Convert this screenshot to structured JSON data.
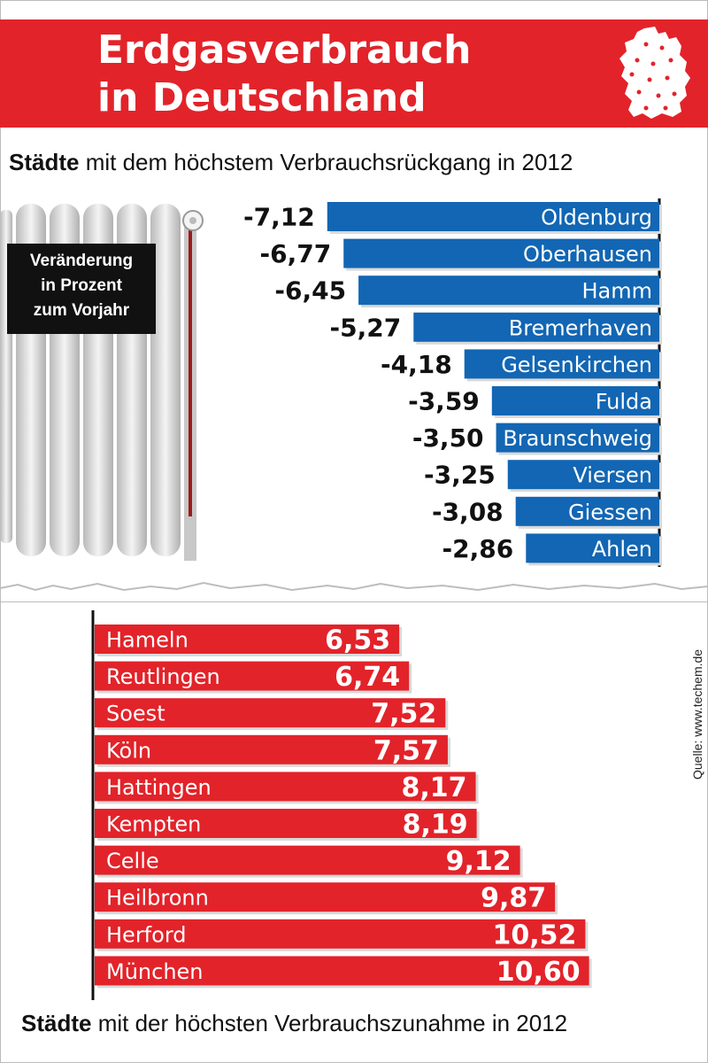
{
  "header": {
    "title_line1": "Erdgasverbrauch",
    "title_line2": "in Deutschland",
    "icon": "germany-map-icon"
  },
  "top_section": {
    "subtitle_bold": "Städte",
    "subtitle_rest": " mit dem höchstem Verbrauchsrückgang in 2012"
  },
  "legend": {
    "line1": "Veränderung",
    "line2": "in Prozent",
    "line3": "zum Vorjahr",
    "icon": "radiator-icon"
  },
  "bottom_section": {
    "subtitle_bold": "Städte",
    "subtitle_rest": " mit der höchsten Verbrauchszunahme in 2012"
  },
  "source": "Quelle: www.techem.de",
  "colors": {
    "header_red": "#e2232a",
    "bar_blue": "#1266b3",
    "bar_red": "#e2232a"
  },
  "chart_data": [
    {
      "type": "bar",
      "orientation": "horizontal",
      "categories": [
        "Oldenburg",
        "Oberhausen",
        "Hamm",
        "Bremerhaven",
        "Gelsenkirchen",
        "Fulda",
        "Braunschweig",
        "Viersen",
        "Giessen",
        "Ahlen"
      ],
      "values": [
        -7.12,
        -6.77,
        -6.45,
        -5.27,
        -4.18,
        -3.59,
        -3.5,
        -3.25,
        -3.08,
        -2.86
      ],
      "labels": [
        "-7,12",
        "-6,77",
        "-6,45",
        "-5,27",
        "-4,18",
        "-3,59",
        "-3,50",
        "-3,25",
        "-3,08",
        "-2,86"
      ],
      "color": "#1266b3"
    },
    {
      "type": "bar",
      "orientation": "horizontal",
      "categories": [
        "Hameln",
        "Reutlingen",
        "Soest",
        "Köln",
        "Hattingen",
        "Kempten",
        "Celle",
        "Heilbronn",
        "Herford",
        "München"
      ],
      "values": [
        6.53,
        6.74,
        7.52,
        7.57,
        8.17,
        8.19,
        9.12,
        9.87,
        10.52,
        10.6
      ],
      "labels": [
        "6,53",
        "6,74",
        "7,52",
        "7,57",
        "8,17",
        "8,19",
        "9,12",
        "9,87",
        "10,52",
        "10,60"
      ],
      "color": "#e2232a"
    }
  ]
}
